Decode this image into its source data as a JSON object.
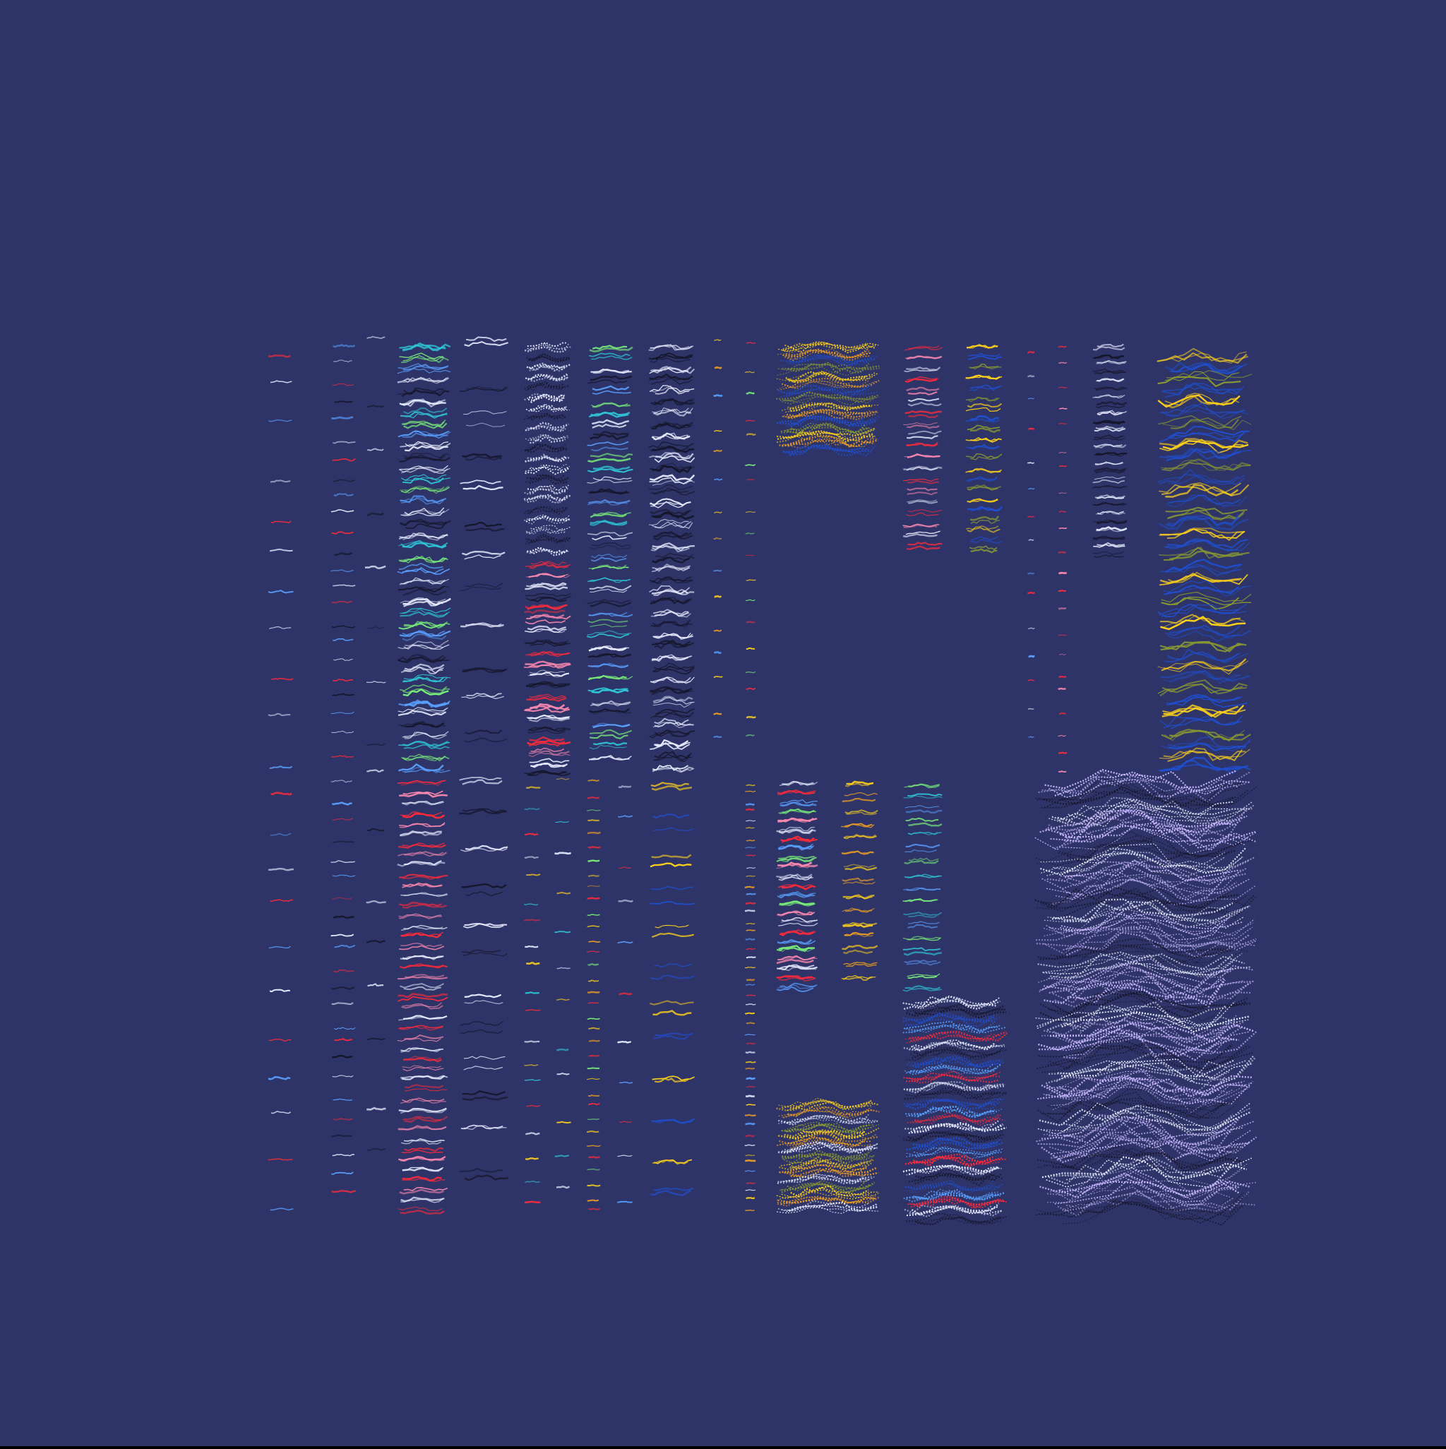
{
  "artwork": {
    "background_color": "#2e3468",
    "palette": {
      "white": "#e8ecff",
      "black": "#15152a",
      "red": "#ff2a3a",
      "pink": "#ff8ab0",
      "yellow": "#ffd21a",
      "orange": "#f0a020",
      "blue": "#1f4fd0",
      "lightblue": "#5aa0ff",
      "cyan": "#2ec8d8",
      "green": "#7af07a",
      "olive": "#8a9a30",
      "lavender": "#c8b8ff"
    }
  }
}
